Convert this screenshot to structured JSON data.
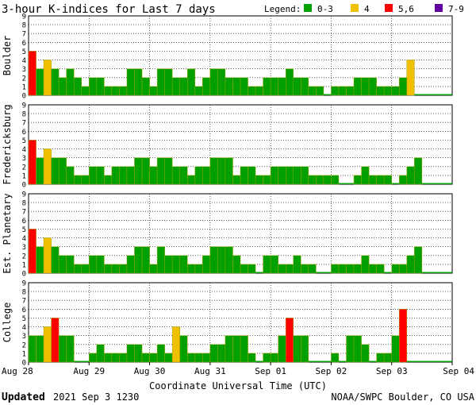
{
  "header": {
    "title": "3-hour K-indices for Last 7 days",
    "legend_label": "Legend:",
    "legend": [
      {
        "label": "0-3",
        "color": "#00a000"
      },
      {
        "label": "4",
        "color": "#f0c000"
      },
      {
        "label": "5,6",
        "color": "#ff0000"
      },
      {
        "label": "7-9",
        "color": "#6000a0"
      }
    ]
  },
  "footer": {
    "updated_label": "Updated",
    "updated_value": "2021 Sep  3 1230",
    "source": "NOAA/SWPC Boulder, CO USA"
  },
  "chart_data": {
    "type": "bar",
    "xlabel": "Coordinate Universal Time (UTC)",
    "x_ticks": [
      "Aug 28",
      "Aug 29",
      "Aug 30",
      "Aug 31",
      "Sep 01",
      "Sep 02",
      "Sep 03",
      "Sep 04"
    ],
    "ylim": [
      0,
      9
    ],
    "y_ticks": [
      "0",
      "1",
      "2",
      "3",
      "4",
      "5",
      "6",
      "7",
      "8",
      "9"
    ],
    "bars_per_day": 8,
    "panels": [
      {
        "name": "Boulder",
        "values": [
          5,
          3,
          4,
          3,
          2,
          3,
          2,
          1,
          2,
          2,
          1,
          1,
          1,
          3,
          3,
          2,
          1,
          3,
          3,
          2,
          2,
          3,
          1,
          2,
          3,
          3,
          2,
          2,
          2,
          1,
          1,
          2,
          2,
          2,
          3,
          2,
          2,
          1,
          1,
          0,
          1,
          1,
          1,
          2,
          2,
          2,
          1,
          1,
          1,
          2,
          4,
          0,
          0,
          0,
          0,
          0
        ]
      },
      {
        "name": "Fredericksburg",
        "values": [
          5,
          3,
          4,
          3,
          3,
          2,
          1,
          1,
          2,
          2,
          1,
          2,
          2,
          2,
          3,
          3,
          2,
          3,
          3,
          2,
          2,
          1,
          2,
          2,
          3,
          3,
          3,
          1,
          2,
          2,
          1,
          1,
          2,
          2,
          2,
          2,
          2,
          1,
          1,
          1,
          1,
          0,
          0,
          1,
          2,
          1,
          1,
          1,
          0,
          1,
          2,
          3,
          0,
          0,
          0,
          0
        ]
      },
      {
        "name": "Est. Planetary",
        "values": [
          5,
          3,
          4,
          3,
          2,
          2,
          1,
          1,
          2,
          2,
          1,
          1,
          1,
          2,
          3,
          3,
          1,
          3,
          2,
          2,
          2,
          1,
          1,
          2,
          3,
          3,
          3,
          2,
          1,
          1,
          0,
          2,
          2,
          1,
          1,
          2,
          1,
          1,
          0,
          0,
          1,
          1,
          1,
          1,
          2,
          1,
          1,
          0,
          1,
          1,
          2,
          3,
          0,
          0,
          0,
          0
        ]
      },
      {
        "name": "College",
        "values": [
          3,
          3,
          4,
          5,
          3,
          3,
          0,
          0,
          1,
          2,
          1,
          1,
          1,
          2,
          2,
          1,
          1,
          2,
          1,
          4,
          3,
          1,
          1,
          1,
          2,
          2,
          3,
          3,
          3,
          1,
          0,
          1,
          1,
          3,
          5,
          3,
          3,
          0,
          0,
          0,
          1,
          0,
          3,
          3,
          2,
          0,
          1,
          1,
          3,
          6,
          0,
          0,
          0,
          0,
          0,
          0
        ]
      }
    ]
  }
}
